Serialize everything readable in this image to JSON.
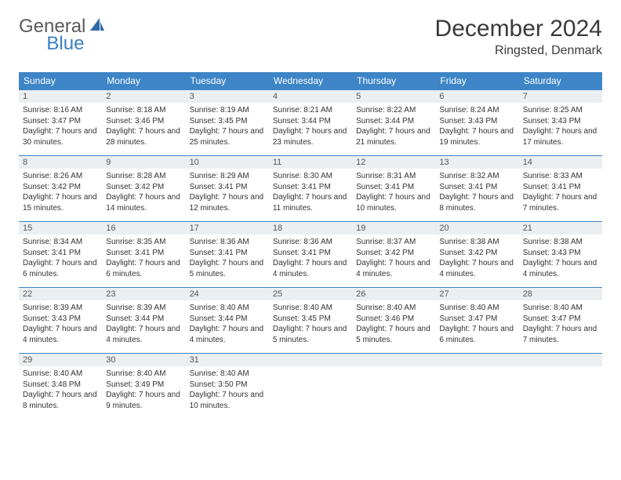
{
  "logo": {
    "general": "General",
    "blue": "Blue"
  },
  "title": "December 2024",
  "location": "Ringsted, Denmark",
  "colors": {
    "header_bg": "#3d85c6",
    "header_text": "#ffffff",
    "daynum_bg": "#eceff2",
    "border": "#3d85c6",
    "logo_gray": "#5a5a5a",
    "logo_blue": "#3a7fc4"
  },
  "dayHeaders": [
    "Sunday",
    "Monday",
    "Tuesday",
    "Wednesday",
    "Thursday",
    "Friday",
    "Saturday"
  ],
  "weeks": [
    [
      {
        "n": "1",
        "sr": "8:16 AM",
        "ss": "3:47 PM",
        "dl": "7 hours and 30 minutes."
      },
      {
        "n": "2",
        "sr": "8:18 AM",
        "ss": "3:46 PM",
        "dl": "7 hours and 28 minutes."
      },
      {
        "n": "3",
        "sr": "8:19 AM",
        "ss": "3:45 PM",
        "dl": "7 hours and 25 minutes."
      },
      {
        "n": "4",
        "sr": "8:21 AM",
        "ss": "3:44 PM",
        "dl": "7 hours and 23 minutes."
      },
      {
        "n": "5",
        "sr": "8:22 AM",
        "ss": "3:44 PM",
        "dl": "7 hours and 21 minutes."
      },
      {
        "n": "6",
        "sr": "8:24 AM",
        "ss": "3:43 PM",
        "dl": "7 hours and 19 minutes."
      },
      {
        "n": "7",
        "sr": "8:25 AM",
        "ss": "3:43 PM",
        "dl": "7 hours and 17 minutes."
      }
    ],
    [
      {
        "n": "8",
        "sr": "8:26 AM",
        "ss": "3:42 PM",
        "dl": "7 hours and 15 minutes."
      },
      {
        "n": "9",
        "sr": "8:28 AM",
        "ss": "3:42 PM",
        "dl": "7 hours and 14 minutes."
      },
      {
        "n": "10",
        "sr": "8:29 AM",
        "ss": "3:41 PM",
        "dl": "7 hours and 12 minutes."
      },
      {
        "n": "11",
        "sr": "8:30 AM",
        "ss": "3:41 PM",
        "dl": "7 hours and 11 minutes."
      },
      {
        "n": "12",
        "sr": "8:31 AM",
        "ss": "3:41 PM",
        "dl": "7 hours and 10 minutes."
      },
      {
        "n": "13",
        "sr": "8:32 AM",
        "ss": "3:41 PM",
        "dl": "7 hours and 8 minutes."
      },
      {
        "n": "14",
        "sr": "8:33 AM",
        "ss": "3:41 PM",
        "dl": "7 hours and 7 minutes."
      }
    ],
    [
      {
        "n": "15",
        "sr": "8:34 AM",
        "ss": "3:41 PM",
        "dl": "7 hours and 6 minutes."
      },
      {
        "n": "16",
        "sr": "8:35 AM",
        "ss": "3:41 PM",
        "dl": "7 hours and 6 minutes."
      },
      {
        "n": "17",
        "sr": "8:36 AM",
        "ss": "3:41 PM",
        "dl": "7 hours and 5 minutes."
      },
      {
        "n": "18",
        "sr": "8:36 AM",
        "ss": "3:41 PM",
        "dl": "7 hours and 4 minutes."
      },
      {
        "n": "19",
        "sr": "8:37 AM",
        "ss": "3:42 PM",
        "dl": "7 hours and 4 minutes."
      },
      {
        "n": "20",
        "sr": "8:38 AM",
        "ss": "3:42 PM",
        "dl": "7 hours and 4 minutes."
      },
      {
        "n": "21",
        "sr": "8:38 AM",
        "ss": "3:43 PM",
        "dl": "7 hours and 4 minutes."
      }
    ],
    [
      {
        "n": "22",
        "sr": "8:39 AM",
        "ss": "3:43 PM",
        "dl": "7 hours and 4 minutes."
      },
      {
        "n": "23",
        "sr": "8:39 AM",
        "ss": "3:44 PM",
        "dl": "7 hours and 4 minutes."
      },
      {
        "n": "24",
        "sr": "8:40 AM",
        "ss": "3:44 PM",
        "dl": "7 hours and 4 minutes."
      },
      {
        "n": "25",
        "sr": "8:40 AM",
        "ss": "3:45 PM",
        "dl": "7 hours and 5 minutes."
      },
      {
        "n": "26",
        "sr": "8:40 AM",
        "ss": "3:46 PM",
        "dl": "7 hours and 5 minutes."
      },
      {
        "n": "27",
        "sr": "8:40 AM",
        "ss": "3:47 PM",
        "dl": "7 hours and 6 minutes."
      },
      {
        "n": "28",
        "sr": "8:40 AM",
        "ss": "3:47 PM",
        "dl": "7 hours and 7 minutes."
      }
    ],
    [
      {
        "n": "29",
        "sr": "8:40 AM",
        "ss": "3:48 PM",
        "dl": "7 hours and 8 minutes."
      },
      {
        "n": "30",
        "sr": "8:40 AM",
        "ss": "3:49 PM",
        "dl": "7 hours and 9 minutes."
      },
      {
        "n": "31",
        "sr": "8:40 AM",
        "ss": "3:50 PM",
        "dl": "7 hours and 10 minutes."
      },
      null,
      null,
      null,
      null
    ]
  ],
  "labels": {
    "sunrise": "Sunrise:",
    "sunset": "Sunset:",
    "daylight": "Daylight:"
  }
}
